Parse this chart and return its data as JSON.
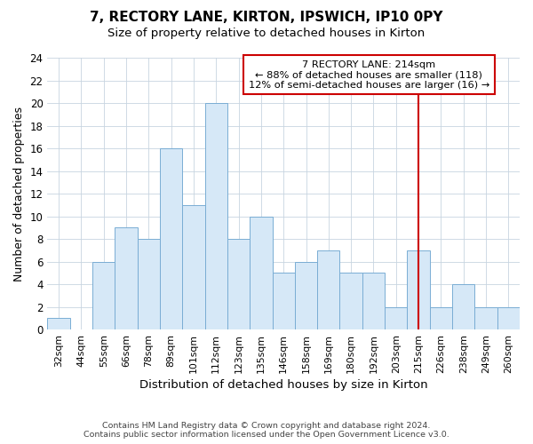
{
  "title": "7, RECTORY LANE, KIRTON, IPSWICH, IP10 0PY",
  "subtitle": "Size of property relative to detached houses in Kirton",
  "xlabel": "Distribution of detached houses by size in Kirton",
  "ylabel": "Number of detached properties",
  "categories": [
    "32sqm",
    "44sqm",
    "55sqm",
    "66sqm",
    "78sqm",
    "89sqm",
    "101sqm",
    "112sqm",
    "123sqm",
    "135sqm",
    "146sqm",
    "158sqm",
    "169sqm",
    "180sqm",
    "192sqm",
    "203sqm",
    "215sqm",
    "226sqm",
    "238sqm",
    "249sqm",
    "260sqm"
  ],
  "values": [
    1,
    0,
    6,
    9,
    8,
    16,
    11,
    20,
    8,
    10,
    5,
    6,
    7,
    5,
    5,
    2,
    7,
    2,
    4,
    2,
    2
  ],
  "bar_color": "#d6e8f7",
  "bar_edge_color": "#7aadd4",
  "ref_line_index": 16,
  "ref_line_color": "#cc0000",
  "annotation_line1": "7 RECTORY LANE: 214sqm",
  "annotation_line2": "← 88% of detached houses are smaller (118)",
  "annotation_line3": "12% of semi-detached houses are larger (16) →",
  "annotation_box_edgecolor": "#cc0000",
  "ylim": [
    0,
    24
  ],
  "yticks": [
    0,
    2,
    4,
    6,
    8,
    10,
    12,
    14,
    16,
    18,
    20,
    22,
    24
  ],
  "footnote_line1": "Contains HM Land Registry data © Crown copyright and database right 2024.",
  "footnote_line2": "Contains public sector information licensed under the Open Government Licence v3.0.",
  "background_color": "#ffffff",
  "grid_color": "#c8d4e0"
}
